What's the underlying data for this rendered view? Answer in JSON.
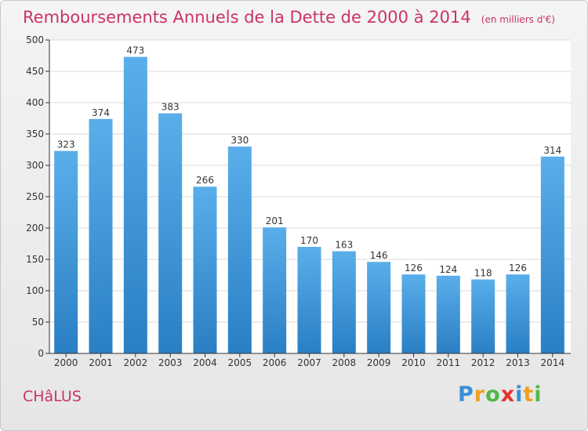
{
  "title": "Remboursements Annuels de la Dette de 2000 à 2014",
  "unit": "(en milliers d'€)",
  "commune": "CHâLUS",
  "logo": {
    "text": "Proxiti",
    "letters": [
      {
        "ch": "P",
        "color": "#3a8fd6"
      },
      {
        "ch": "r",
        "color": "#f0a020"
      },
      {
        "ch": "o",
        "color": "#50b848"
      },
      {
        "ch": "x",
        "color": "#e83030"
      },
      {
        "ch": "i",
        "color": "#3a8fd6"
      },
      {
        "ch": "t",
        "color": "#f0a020"
      },
      {
        "ch": "i",
        "color": "#50b848"
      }
    ]
  },
  "colors": {
    "accent": "#cc3366",
    "bar_top": "#5aaeea",
    "bar_bottom": "#2a7fc4",
    "grid": "#d8d8d8",
    "axis": "#333333"
  },
  "chart_data": {
    "type": "bar",
    "categories": [
      "2000",
      "2001",
      "2002",
      "2003",
      "2004",
      "2005",
      "2006",
      "2007",
      "2008",
      "2009",
      "2010",
      "2011",
      "2012",
      "2013",
      "2014"
    ],
    "values": [
      323,
      374,
      473,
      383,
      266,
      330,
      201,
      170,
      163,
      146,
      126,
      124,
      118,
      126,
      314
    ],
    "ylim": [
      0,
      500
    ],
    "yticks": [
      0,
      50,
      100,
      150,
      200,
      250,
      300,
      350,
      400,
      450,
      500
    ],
    "grid": true,
    "data_labels": true
  }
}
